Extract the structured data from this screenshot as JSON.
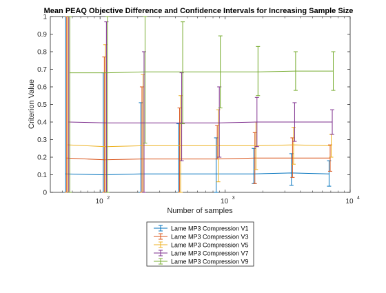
{
  "chart_data": {
    "type": "line",
    "title": "Mean PEAQ Objective Difference and Confidence Intervals for Increasing Sample Size",
    "xlabel": "Number of samples",
    "ylabel": "Criterion Value",
    "xscale": "log",
    "xlim": [
      40,
      10000
    ],
    "ylim": [
      0,
      1
    ],
    "xticks": [
      {
        "value": 100,
        "base": "10",
        "exp": "2"
      },
      {
        "value": 1000,
        "base": "10",
        "exp": "3"
      },
      {
        "value": 10000,
        "base": "10",
        "exp": "4"
      }
    ],
    "yticks": [
      "0",
      "0.1",
      "0.2",
      "0.3",
      "0.4",
      "0.5",
      "0.6",
      "0.7",
      "0.8",
      "0.9",
      "1"
    ],
    "grid": false,
    "legend_position": "bottom-center",
    "x": [
      53,
      106,
      212,
      424,
      848,
      1696,
      3392,
      6784
    ],
    "series": [
      {
        "name": "Lame MP3 Compression V1",
        "color": "#0072BD",
        "x_offset": 1.0,
        "values": [
          0.105,
          0.1,
          0.105,
          0.105,
          0.105,
          0.105,
          0.11,
          0.105
        ],
        "lower": [
          0,
          0,
          0,
          0,
          0.0,
          0.05,
          0.04,
          0.035
        ],
        "upper": [
          1,
          0.68,
          0.51,
          0.39,
          0.31,
          0.25,
          0.22,
          0.18
        ]
      },
      {
        "name": "Lame MP3 Compression V3",
        "color": "#D95319",
        "x_offset": 1.02,
        "values": [
          0.195,
          0.185,
          0.19,
          0.19,
          0.19,
          0.195,
          0.195,
          0.195
        ],
        "lower": [
          0,
          0,
          0,
          0,
          0.19,
          0.05,
          0.085,
          0.12
        ],
        "upper": [
          1,
          0.77,
          0.6,
          0.48,
          0.38,
          0.34,
          0.31,
          0.27
        ]
      },
      {
        "name": "Lame MP3 Compression V5",
        "color": "#EDB120",
        "x_offset": 1.04,
        "values": [
          0.27,
          0.26,
          0.265,
          0.265,
          0.265,
          0.265,
          0.27,
          0.265
        ],
        "lower": [
          0,
          0,
          0,
          0,
          0.06,
          0.13,
          0.16,
          0.2
        ],
        "upper": [
          1,
          0.84,
          0.67,
          0.55,
          0.47,
          0.4,
          0.37,
          0.33
        ]
      },
      {
        "name": "Lame MP3 Compression V7",
        "color": "#7E2F8E",
        "x_offset": 1.06,
        "values": [
          0.4,
          0.395,
          0.395,
          0.395,
          0.395,
          0.4,
          0.4,
          0.4
        ],
        "lower": [
          0,
          0,
          0,
          0.18,
          0.2,
          0.26,
          0.29,
          0.33
        ],
        "upper": [
          1,
          0.97,
          0.8,
          0.68,
          0.6,
          0.54,
          0.51,
          0.47
        ]
      },
      {
        "name": "Lame MP3 Compression V9",
        "color": "#77AC30",
        "x_offset": 1.08,
        "values": [
          0.68,
          0.68,
          0.685,
          0.685,
          0.685,
          0.685,
          0.69,
          0.69
        ],
        "lower": [
          0,
          0,
          0.28,
          0.39,
          0.48,
          0.55,
          0.58,
          0.58
        ],
        "upper": [
          1,
          1,
          1,
          0.97,
          0.89,
          0.83,
          0.8,
          0.8
        ]
      }
    ]
  }
}
